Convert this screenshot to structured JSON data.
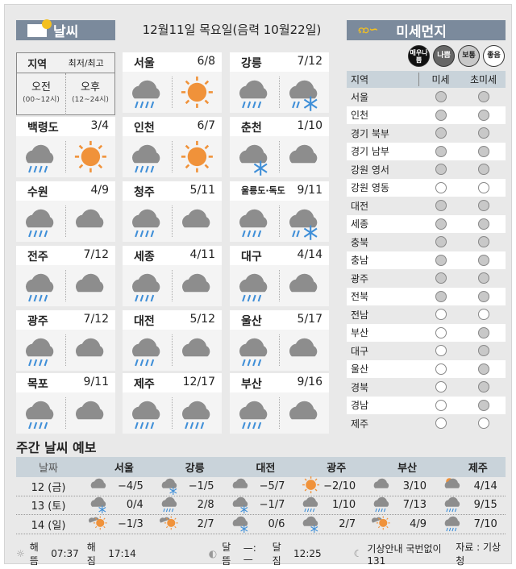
{
  "header": {
    "weather_title": "날씨",
    "date": "12월11일 목요일(음력 10월22일)",
    "dust_title": "미세먼지"
  },
  "legend": {
    "region": "지역",
    "minmax": "최저/최고",
    "am": "오전",
    "am_range": "(00~12시)",
    "pm": "오후",
    "pm_range": "(12~24시)"
  },
  "cities": [
    {
      "name": "서울",
      "temp": "6/8",
      "am": "rain",
      "pm": "sun"
    },
    {
      "name": "강릉",
      "temp": "7/12",
      "am": "rain",
      "pm": "sleet"
    },
    {
      "name": "백령도",
      "temp": "3/4",
      "am": "rain",
      "pm": "sun"
    },
    {
      "name": "인천",
      "temp": "6/7",
      "am": "rain",
      "pm": "sun"
    },
    {
      "name": "춘천",
      "temp": "1/10",
      "am": "snow",
      "pm": "cloud"
    },
    {
      "name": "수원",
      "temp": "4/9",
      "am": "rain",
      "pm": "cloud"
    },
    {
      "name": "청주",
      "temp": "5/11",
      "am": "rain",
      "pm": "cloud"
    },
    {
      "name": "울릉도·독도",
      "temp": "9/11",
      "am": "rain",
      "pm": "sleet"
    },
    {
      "name": "전주",
      "temp": "7/12",
      "am": "rain",
      "pm": "cloud"
    },
    {
      "name": "세종",
      "temp": "4/11",
      "am": "rain",
      "pm": "cloud"
    },
    {
      "name": "대구",
      "temp": "4/14",
      "am": "rain",
      "pm": "cloud"
    },
    {
      "name": "광주",
      "temp": "7/12",
      "am": "rain",
      "pm": "cloud"
    },
    {
      "name": "대전",
      "temp": "5/12",
      "am": "rain",
      "pm": "cloud"
    },
    {
      "name": "울산",
      "temp": "5/17",
      "am": "rain",
      "pm": "cloud"
    },
    {
      "name": "목포",
      "temp": "9/11",
      "am": "rain",
      "pm": "cloud"
    },
    {
      "name": "제주",
      "temp": "12/17",
      "am": "rain",
      "pm": "rain"
    },
    {
      "name": "부산",
      "temp": "9/16",
      "am": "rain",
      "pm": "cloud"
    }
  ],
  "dust": {
    "levels": [
      {
        "label": "매우나쁨",
        "color": "#111111"
      },
      {
        "label": "나쁨",
        "color": "#666666"
      },
      {
        "label": "보통",
        "color": "#c8c8c8"
      },
      {
        "label": "좋음",
        "color": "#ffffff"
      }
    ],
    "headers": [
      "지역",
      "미세",
      "초미세"
    ],
    "rows": [
      {
        "region": "서울",
        "pm10": "보통",
        "pm25": "보통"
      },
      {
        "region": "인천",
        "pm10": "보통",
        "pm25": "보통"
      },
      {
        "region": "경기 북부",
        "pm10": "보통",
        "pm25": "보통"
      },
      {
        "region": "경기 남부",
        "pm10": "보통",
        "pm25": "보통"
      },
      {
        "region": "강원 영서",
        "pm10": "보통",
        "pm25": "보통"
      },
      {
        "region": "강원 영동",
        "pm10": "좋음",
        "pm25": "좋음"
      },
      {
        "region": "대전",
        "pm10": "보통",
        "pm25": "보통"
      },
      {
        "region": "세종",
        "pm10": "보통",
        "pm25": "보통"
      },
      {
        "region": "충북",
        "pm10": "보통",
        "pm25": "보통"
      },
      {
        "region": "충남",
        "pm10": "보통",
        "pm25": "보통"
      },
      {
        "region": "광주",
        "pm10": "보통",
        "pm25": "보통"
      },
      {
        "region": "전북",
        "pm10": "보통",
        "pm25": "보통"
      },
      {
        "region": "전남",
        "pm10": "좋음",
        "pm25": "좋음"
      },
      {
        "region": "부산",
        "pm10": "좋음",
        "pm25": "보통"
      },
      {
        "region": "대구",
        "pm10": "좋음",
        "pm25": "보통"
      },
      {
        "region": "울산",
        "pm10": "좋음",
        "pm25": "보통"
      },
      {
        "region": "경북",
        "pm10": "좋음",
        "pm25": "보통"
      },
      {
        "region": "경남",
        "pm10": "좋음",
        "pm25": "보통"
      },
      {
        "region": "제주",
        "pm10": "좋음",
        "pm25": "좋음"
      }
    ]
  },
  "weekly": {
    "title": "주간 날씨 예보",
    "date_header": "날짜",
    "cities": [
      "서울",
      "강릉",
      "대전",
      "광주",
      "부산",
      "제주"
    ],
    "rows": [
      {
        "date": "12 (금)",
        "cells": [
          {
            "icon": "cloud",
            "temp": "−4/5"
          },
          {
            "icon": "snow",
            "temp": "−1/5"
          },
          {
            "icon": "cloud",
            "temp": "−5/7"
          },
          {
            "icon": "sun",
            "temp": "−2/10"
          },
          {
            "icon": "cloud",
            "temp": "3/10"
          },
          {
            "icon": "suncloud",
            "temp": "4/14"
          }
        ]
      },
      {
        "date": "13 (토)",
        "cells": [
          {
            "icon": "snow",
            "temp": "0/4"
          },
          {
            "icon": "rain",
            "temp": "2/8"
          },
          {
            "icon": "snow",
            "temp": "−1/7"
          },
          {
            "icon": "rain",
            "temp": "1/10"
          },
          {
            "icon": "rain",
            "temp": "7/13"
          },
          {
            "icon": "rain",
            "temp": "9/15"
          }
        ]
      },
      {
        "date": "14 (일)",
        "cells": [
          {
            "icon": "cloudsun",
            "temp": "−1/3"
          },
          {
            "icon": "cloudsun",
            "temp": "2/7"
          },
          {
            "icon": "snow",
            "temp": "0/6"
          },
          {
            "icon": "snow",
            "temp": "2/7"
          },
          {
            "icon": "cloudsun",
            "temp": "4/9"
          },
          {
            "icon": "rain",
            "temp": "7/10"
          }
        ]
      }
    ]
  },
  "footer": {
    "sunrise_label": "해뜸",
    "sunrise": "07:37",
    "sunset_label": "해짐",
    "sunset": "17:14",
    "moonrise_label": "달뜸",
    "moonrise": "—:—",
    "moonset_label": "달짐",
    "moonset": "12:25",
    "info": "기상안내 국번없이 131",
    "source": "자료 : 기상청"
  }
}
